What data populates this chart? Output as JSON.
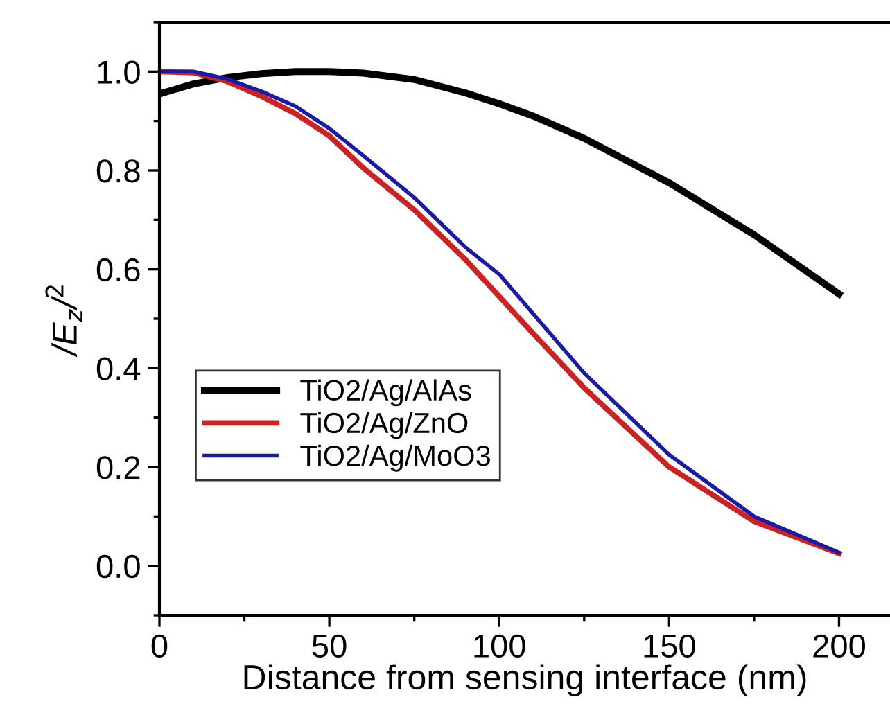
{
  "chart_data": {
    "type": "line",
    "xlabel": "Distance from sensing interface (nm)",
    "ylabel": "/E$_{z}$/$^{2}$",
    "x": [
      0,
      10,
      20,
      30,
      40,
      50,
      60,
      75,
      90,
      100,
      110,
      125,
      150,
      175,
      200
    ],
    "series": [
      {
        "name": "TiO2/Ag/AlAs",
        "color": "#000000",
        "values": [
          0.955,
          0.975,
          0.988,
          0.996,
          1.0,
          1.0,
          0.997,
          0.984,
          0.957,
          0.935,
          0.91,
          0.865,
          0.775,
          0.67,
          0.55
        ]
      },
      {
        "name": "TiO2/Ag/ZnO",
        "color": "#cc2222",
        "values": [
          1.0,
          0.998,
          0.98,
          0.95,
          0.915,
          0.87,
          0.805,
          0.72,
          0.62,
          0.545,
          0.47,
          0.36,
          0.2,
          0.09,
          0.025
        ]
      },
      {
        "name": "TiO2/Ag/MoO3",
        "color": "#1a1aa8",
        "values": [
          1.0,
          1.0,
          0.985,
          0.96,
          0.93,
          0.885,
          0.83,
          0.745,
          0.645,
          0.59,
          0.51,
          0.39,
          0.225,
          0.1,
          0.027
        ]
      }
    ],
    "xlim": [
      0,
      215
    ],
    "ylim": [
      -0.1,
      1.1
    ],
    "xticks": [
      0,
      50,
      100,
      150,
      200
    ],
    "yticks": [
      {
        "value": 0.0,
        "label": "0.0"
      },
      {
        "value": 0.2,
        "label": "0.2"
      },
      {
        "value": 0.4,
        "label": "0.4"
      },
      {
        "value": 0.6,
        "label": "0.6"
      },
      {
        "value": 0.8,
        "label": "0.8"
      },
      {
        "value": 1.0,
        "label": "1.0"
      }
    ],
    "grid": false,
    "legend": "left",
    "marker": "none",
    "line_style": "solid"
  }
}
